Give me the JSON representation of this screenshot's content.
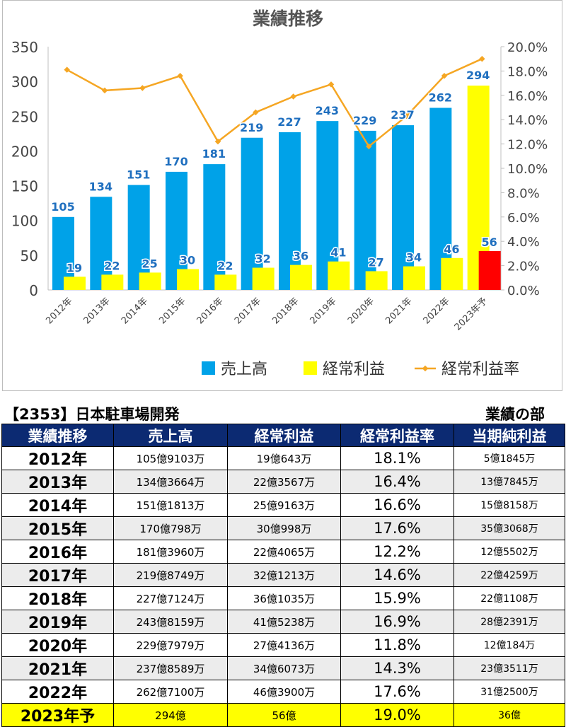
{
  "chart_data": {
    "type": "bar",
    "title": "業績推移",
    "categories": [
      "2012年",
      "2013年",
      "2014年",
      "2015年",
      "2016年",
      "2017年",
      "2018年",
      "2019年",
      "2020年",
      "2021年",
      "2022年",
      "2023年予"
    ],
    "series": [
      {
        "name": "売上高",
        "type": "bar",
        "axis": "left",
        "color": "#00a2e8",
        "values": [
          105,
          134,
          151,
          170,
          181,
          219,
          227,
          243,
          229,
          237,
          262,
          294
        ],
        "point_colors": {
          "11": "#ffff00"
        }
      },
      {
        "name": "経常利益",
        "type": "bar",
        "axis": "left",
        "color": "#ffff00",
        "values": [
          19,
          22,
          25,
          30,
          22,
          32,
          36,
          41,
          27,
          34,
          46,
          56
        ],
        "point_colors": {
          "11": "#ff0000"
        }
      },
      {
        "name": "経常利益率",
        "type": "line",
        "axis": "right",
        "color": "#f5a623",
        "values": [
          18.1,
          16.4,
          16.6,
          17.6,
          12.2,
          14.6,
          15.9,
          16.9,
          11.8,
          14.3,
          17.6,
          19.0
        ]
      }
    ],
    "ylim": [
      0,
      350
    ],
    "yticks": [
      "0",
      "50",
      "100",
      "150",
      "200",
      "250",
      "300",
      "350"
    ],
    "y2lim": [
      0,
      20
    ],
    "y2ticks": [
      "0.0%",
      "2.0%",
      "4.0%",
      "6.0%",
      "8.0%",
      "10.0%",
      "12.0%",
      "14.0%",
      "16.0%",
      "18.0%",
      "20.0%"
    ],
    "data_label_color": "#1f6fbf",
    "grid": false,
    "legend_position": "bottom-right"
  },
  "table": {
    "company": "【2353】日本駐車場開発",
    "section": "業績の部",
    "headers": [
      "業績推移",
      "売上高",
      "経常利益",
      "経常利益率",
      "当期純利益"
    ],
    "rows": [
      [
        "2012年",
        "105億9103万",
        "19億643万",
        "18.1%",
        "5億1845万"
      ],
      [
        "2013年",
        "134億3664万",
        "22億3567万",
        "16.4%",
        "13億7845万"
      ],
      [
        "2014年",
        "151億1813万",
        "25億9163万",
        "16.6%",
        "15億8158万"
      ],
      [
        "2015年",
        "170億798万",
        "30億998万",
        "17.6%",
        "35億3068万"
      ],
      [
        "2016年",
        "181億3960万",
        "22億4065万",
        "12.2%",
        "12億5502万"
      ],
      [
        "2017年",
        "219億8749万",
        "32億1213万",
        "14.6%",
        "22億4259万"
      ],
      [
        "2018年",
        "227億7124万",
        "36億1035万",
        "15.9%",
        "22億1108万"
      ],
      [
        "2019年",
        "243億8159万",
        "41億5238万",
        "16.9%",
        "28億2391万"
      ],
      [
        "2020年",
        "229億7979万",
        "27億4136万",
        "11.8%",
        "12億184万"
      ],
      [
        "2021年",
        "237億8589万",
        "34億6073万",
        "14.3%",
        "23億3511万"
      ],
      [
        "2022年",
        "262億7100万",
        "46億3900万",
        "17.6%",
        "31億2500万"
      ],
      [
        "2023年予",
        "294億",
        "56億",
        "19.0%",
        "36億"
      ]
    ],
    "forecast_row_color": "#ffff00",
    "header_bg_color": "#0c2a72"
  }
}
